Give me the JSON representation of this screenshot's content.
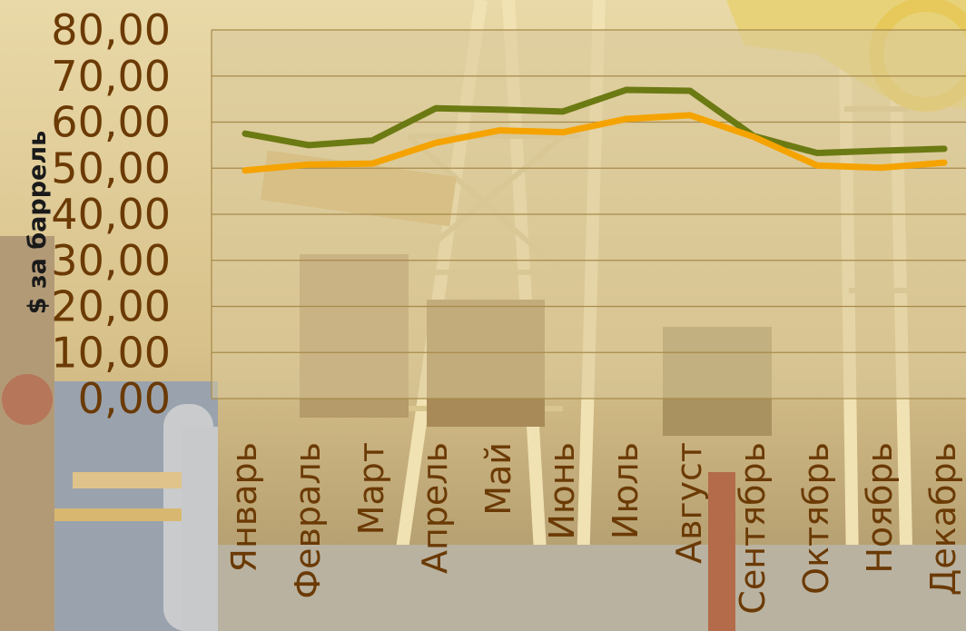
{
  "chart_data": {
    "type": "line",
    "title": "",
    "xlabel": "",
    "ylabel": "$ за баррель",
    "ylim": [
      0,
      80
    ],
    "yticks": [
      "0,00",
      "10,00",
      "20,00",
      "30,00",
      "40,00",
      "50,00",
      "60,00",
      "70,00",
      "80,00"
    ],
    "categories": [
      "Январь",
      "Февраль",
      "Март",
      "Апрель",
      "Май",
      "Июнь",
      "Июль",
      "Август",
      "Сентябрь",
      "Октябрь",
      "Ноябрь",
      "Декабрь"
    ],
    "grid": true,
    "legend": "none",
    "series": [
      {
        "color": "#6b7a12",
        "values": [
          57.5,
          55.0,
          56.0,
          63.0,
          62.7,
          62.3,
          67.0,
          66.8,
          57.0,
          53.3,
          53.8,
          54.2
        ]
      },
      {
        "color": "#f5a300",
        "values": [
          49.5,
          50.8,
          51.0,
          55.5,
          58.2,
          57.8,
          60.7,
          61.5,
          56.8,
          50.6,
          50.1,
          51.2
        ]
      }
    ]
  },
  "colors": {
    "plot_background": "#d8c89a",
    "gridline": "#a88a4a",
    "tick_text": "#6b3a05",
    "axis_title_text": "#1a1a1a"
  },
  "background": {
    "subject": "oil-pump-jacks-photo"
  }
}
